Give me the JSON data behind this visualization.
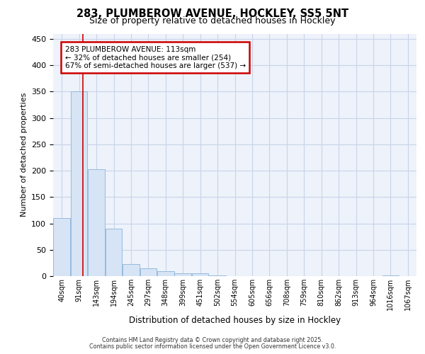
{
  "title1": "283, PLUMBEROW AVENUE, HOCKLEY, SS5 5NT",
  "title2": "Size of property relative to detached houses in Hockley",
  "xlabel": "Distribution of detached houses by size in Hockley",
  "ylabel": "Number of detached properties",
  "bin_labels": [
    "40sqm",
    "91sqm",
    "143sqm",
    "194sqm",
    "245sqm",
    "297sqm",
    "348sqm",
    "399sqm",
    "451sqm",
    "502sqm",
    "554sqm",
    "605sqm",
    "656sqm",
    "708sqm",
    "759sqm",
    "810sqm",
    "862sqm",
    "913sqm",
    "964sqm",
    "1016sqm",
    "1067sqm"
  ],
  "bar_values": [
    110,
    350,
    203,
    90,
    23,
    15,
    9,
    6,
    5,
    1,
    0,
    0,
    0,
    0,
    0,
    0,
    0,
    0,
    0,
    2,
    0
  ],
  "bar_color": "#d6e4f5",
  "bar_edge_color": "#8ab4d8",
  "ylim": [
    0,
    460
  ],
  "yticks": [
    0,
    50,
    100,
    150,
    200,
    250,
    300,
    350,
    400,
    450
  ],
  "red_line_x": 1.22,
  "annotation_title": "283 PLUMBEROW AVENUE: 113sqm",
  "annotation_line1": "← 32% of detached houses are smaller (254)",
  "annotation_line2": "67% of semi-detached houses are larger (537) →",
  "annotation_box_color": "#ffffff",
  "annotation_box_edge": "#cc0000",
  "red_line_color": "#cc0000",
  "grid_color": "#c8d4e8",
  "plot_bg_color": "#eef2fa",
  "fig_bg_color": "#ffffff",
  "footer1": "Contains HM Land Registry data © Crown copyright and database right 2025.",
  "footer2": "Contains public sector information licensed under the Open Government Licence v3.0."
}
